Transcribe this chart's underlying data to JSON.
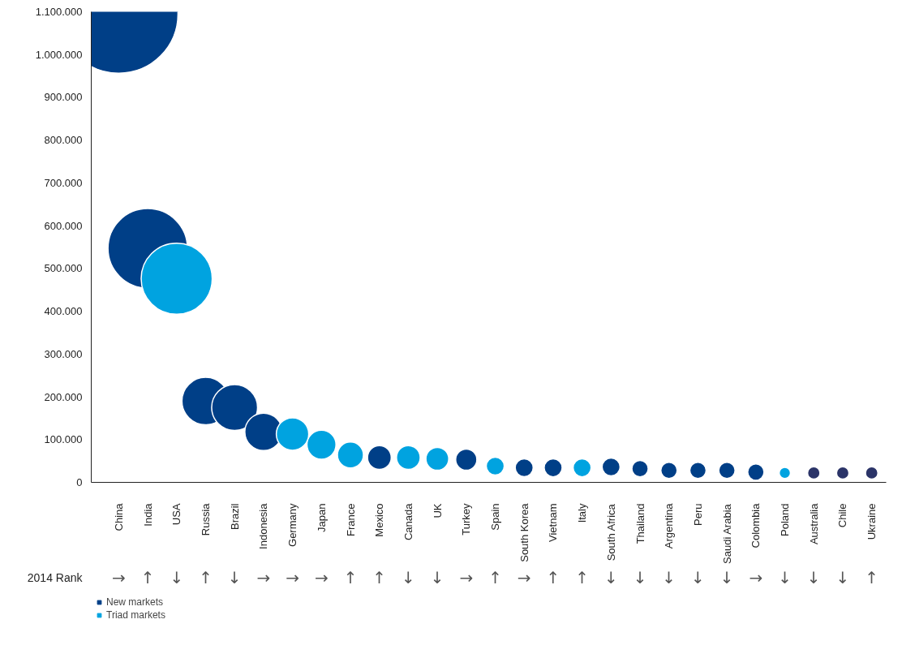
{
  "chart_data": {
    "type": "bubble",
    "categories": [
      "China",
      "India",
      "USA",
      "Russia",
      "Brazil",
      "Indonesia",
      "Germany",
      "Japan",
      "France",
      "Mexico",
      "Canada",
      "UK",
      "Turkey",
      "Spain",
      "South Korea",
      "Vietnam",
      "Italy",
      "South Africa",
      "Thailand",
      "Argentina",
      "Peru",
      "Saudi Arabia",
      "Colombia",
      "Poland",
      "Australia",
      "Chile",
      "Ukraine"
    ],
    "series": [
      {
        "name": "New markets",
        "color": "#003f87",
        "values": [
          1095000,
          547000,
          null,
          190000,
          175000,
          118000,
          null,
          null,
          null,
          58000,
          null,
          null,
          53000,
          null,
          34000,
          34000,
          null,
          36000,
          32000,
          28000,
          28000,
          28000,
          24000,
          null,
          22000,
          22000,
          22000
        ],
        "sizes": [
          1,
          0.45,
          null,
          0.16,
          0.15,
          0.1,
          null,
          null,
          null,
          0.04,
          null,
          null,
          0.032,
          null,
          0.023,
          0.023,
          null,
          0.023,
          0.019,
          0.019,
          0.019,
          0.019,
          0.019,
          null,
          0.011,
          0.011,
          0.011
        ],
        "colors": [
          "#003f87",
          "#003f87",
          null,
          "#003f87",
          "#003f87",
          "#003f87",
          null,
          null,
          null,
          "#003f87",
          null,
          null,
          "#003f87",
          null,
          "#003f87",
          "#003f87",
          null,
          "#003f87",
          "#003f87",
          "#003f87",
          "#003f87",
          "#003f87",
          "#003f87",
          null,
          "#2b3468",
          "#2b3468",
          "#2b3468"
        ]
      },
      {
        "name": "Triad markets",
        "color": "#00a3e0",
        "values": [
          null,
          null,
          476000,
          null,
          null,
          null,
          113000,
          88000,
          64000,
          null,
          58000,
          55000,
          null,
          38000,
          null,
          null,
          34000,
          null,
          null,
          null,
          null,
          null,
          null,
          22000,
          null,
          null,
          null
        ],
        "sizes": [
          null,
          null,
          0.36,
          null,
          null,
          null,
          0.075,
          0.06,
          0.048,
          null,
          0.04,
          0.037,
          null,
          0.023,
          null,
          null,
          0.023,
          null,
          null,
          null,
          null,
          null,
          null,
          0.009,
          null,
          null,
          null
        ]
      }
    ],
    "ylim": [
      0,
      1100000
    ],
    "yticks": [
      0,
      {
        "value": 100000,
        "label": "100.000"
      },
      {
        "value": 200000,
        "label": "200.000"
      },
      {
        "value": 300000,
        "label": "300.000"
      },
      {
        "value": 400000,
        "label": "400.000"
      },
      {
        "value": 500000,
        "label": "500.000"
      },
      {
        "value": 600000,
        "label": "600.000"
      },
      {
        "value": 700000,
        "label": "700.000"
      },
      {
        "value": 800000,
        "label": "800.000"
      },
      {
        "value": 900000,
        "label": "900.000"
      },
      {
        "value": 1000000,
        "label": "1.000.000"
      },
      {
        "value": 1100000,
        "label": "1.100.000"
      }
    ],
    "legend": "bottom left",
    "annotations": [
      "2014 Rank",
      "→",
      "↑",
      "↓",
      "↑",
      "↓",
      "→",
      "→",
      "→",
      "↑",
      "↑",
      "↓",
      "↓",
      "→",
      "↑",
      "→",
      "↑",
      "↑",
      "↓",
      "↓",
      "↓",
      "↓",
      "↓",
      "→",
      "↓",
      "↓",
      "↓",
      "↑"
    ]
  }
}
